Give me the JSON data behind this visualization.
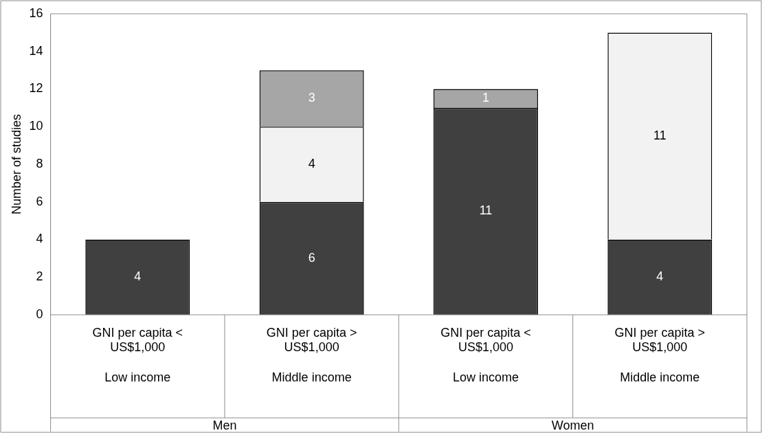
{
  "chart_data": {
    "type": "bar",
    "stacked": true,
    "ylabel": "Number of studies",
    "categories": [
      "GNI per capita <\nUS$1,000\n\nLow income",
      "GNI per capita >\nUS$1,000\n\nMiddle income",
      "GNI per capita <\nUS$1,000\n\nLow income",
      "GNI per capita >\nUS$1,000\n\nMiddle income"
    ],
    "series": [
      {
        "color": "#404040",
        "values": [
          4,
          6,
          11,
          4
        ]
      },
      {
        "color": "#f2f2f2",
        "values": [
          null,
          4,
          null,
          11
        ]
      },
      {
        "color": "#a6a6a6",
        "values": [
          null,
          3,
          1,
          null
        ]
      }
    ],
    "ylim": [
      0,
      16
    ],
    "yticks": [
      0,
      2,
      4,
      6,
      8,
      10,
      12,
      14,
      16
    ],
    "grid": false,
    "legend": false,
    "data_labels": true,
    "annotations": [
      "Men",
      "Women"
    ]
  }
}
